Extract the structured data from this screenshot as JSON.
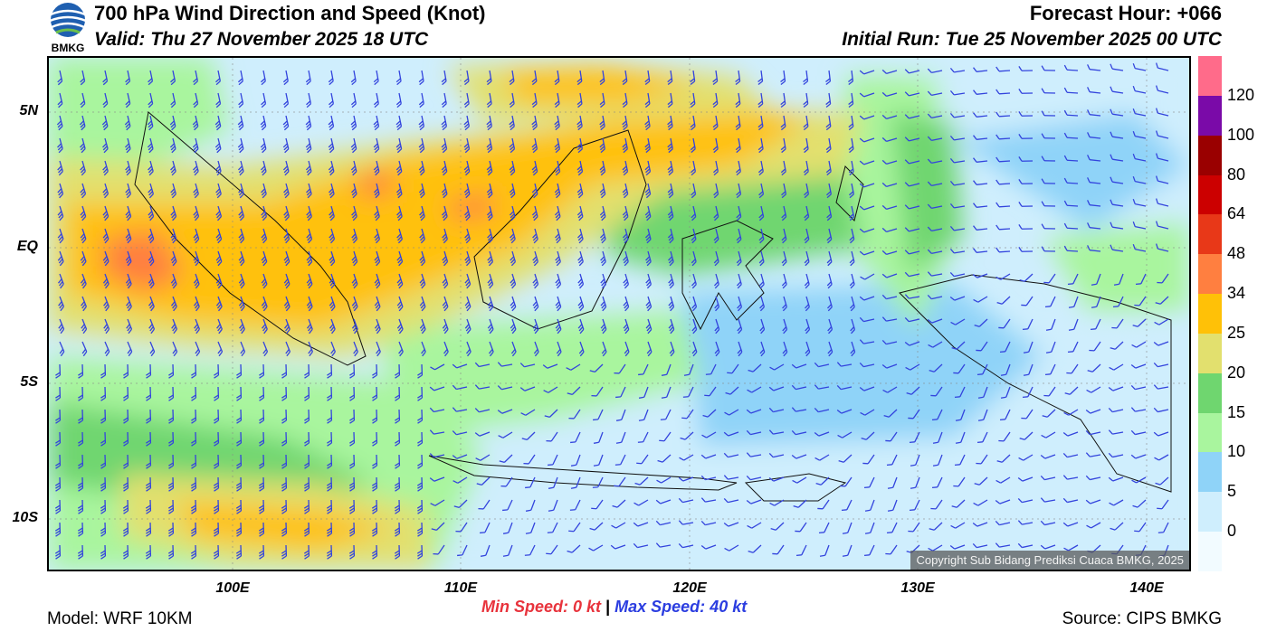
{
  "header": {
    "title": "700 hPa Wind Direction and Speed (Knot)",
    "forecast_hour": "Forecast Hour: +066",
    "valid": "Valid: Thu 27 November 2025 18 UTC",
    "initial_run": "Initial Run: Tue 25 November 2025 00 UTC",
    "logo_text": "BMKG"
  },
  "map": {
    "lat_labels": [
      "5N",
      "EQ",
      "5S",
      "10S"
    ],
    "lon_labels": [
      "100E",
      "110E",
      "120E",
      "130E",
      "140E"
    ],
    "copyright": "Copyright Sub Bidang Prediksi Cuaca BMKG, 2025"
  },
  "colorbar": {
    "labels": [
      "120",
      "100",
      "80",
      "64",
      "48",
      "34",
      "25",
      "20",
      "15",
      "10",
      "5",
      "0"
    ],
    "colors": [
      "#ff6b8a",
      "#7a0aa8",
      "#9a0000",
      "#cc0000",
      "#e83818",
      "#ff7f40",
      "#ffc107",
      "#e2e06e",
      "#6fd66f",
      "#a9f59e",
      "#8fd3f8",
      "#cfeefd",
      "#f2fbff"
    ]
  },
  "footer": {
    "model": "Model: WRF 10KM",
    "min_speed_label": "Min Speed:",
    "min_speed_value": "0 kt",
    "separator": "|",
    "max_speed_label": "Max Speed:",
    "max_speed_value": "40 kt",
    "source": "Source: CIPS BMKG"
  },
  "colors": {
    "min_speed": "#e8333c",
    "max_speed": "#2b3de0",
    "barb": "#3344dd"
  }
}
